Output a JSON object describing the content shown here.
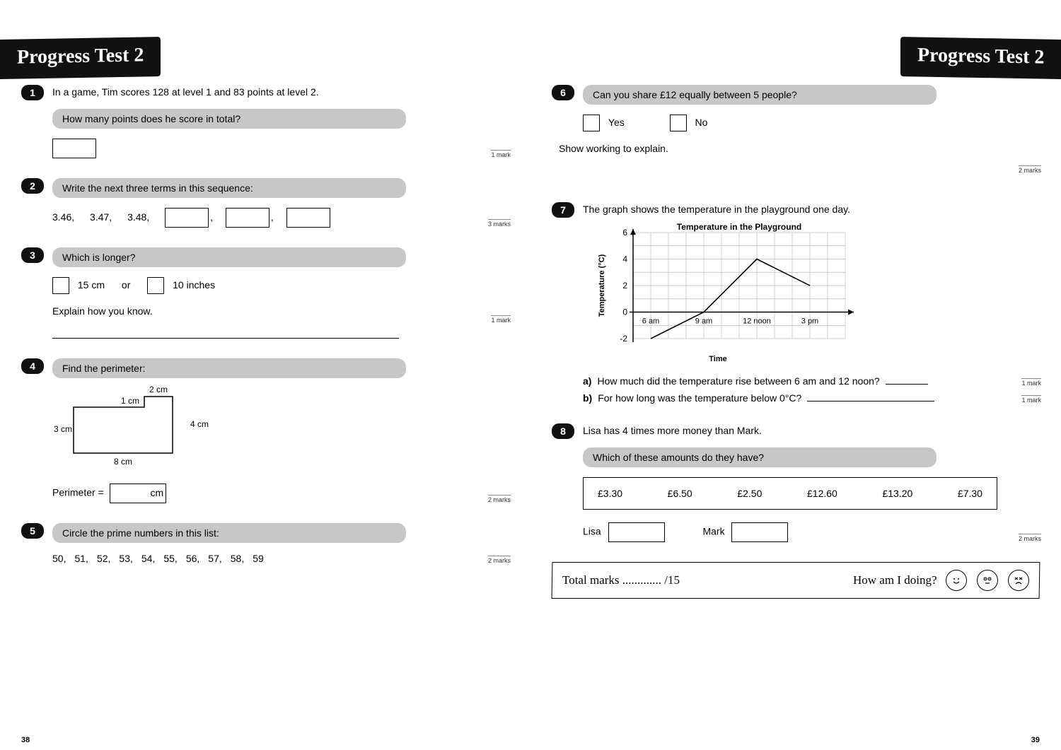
{
  "header": {
    "title": "Progress Test 2"
  },
  "pageLeft": 38,
  "pageRight": 39,
  "q1": {
    "num": "1",
    "intro": "In a game, Tim scores 128 at level 1 and 83 points at level 2.",
    "prompt": "How many points does he score in total?",
    "marks": "1 mark"
  },
  "q2": {
    "num": "2",
    "prompt": "Write the next three terms in this sequence:",
    "seq": [
      "3.46,",
      "3.47,",
      "3.48,"
    ],
    "marks": "3 marks"
  },
  "q3": {
    "num": "3",
    "prompt": "Which is longer?",
    "opt1": "15 cm",
    "or": "or",
    "opt2": "10 inches",
    "explain": "Explain how you know.",
    "marks": "1 mark"
  },
  "q4": {
    "num": "4",
    "prompt": "Find the perimeter:",
    "labels": {
      "top": "2 cm",
      "step": "1 cm",
      "right": "4 cm",
      "left": "3 cm",
      "bottom": "8 cm"
    },
    "eq": "Perimeter =",
    "unit": "cm",
    "marks": "2 marks"
  },
  "q5": {
    "num": "5",
    "prompt": "Circle the prime numbers in this list:",
    "list": [
      "50,",
      "51,",
      "52,",
      "53,",
      "54,",
      "55,",
      "56,",
      "57,",
      "58,",
      "59"
    ],
    "marks": "2 marks"
  },
  "q6": {
    "num": "6",
    "prompt": "Can you share £12 equally between 5 people?",
    "yes": "Yes",
    "no": "No",
    "working": "Show working to explain.",
    "marks": "2 marks"
  },
  "q7": {
    "num": "7",
    "intro": "The graph shows the temperature in the playground one day.",
    "chart": {
      "title": "Temperature in the Playground",
      "ylabel": "Temperature (°C)",
      "xlabel": "Time",
      "yticks": [
        -2,
        0,
        2,
        4,
        6
      ],
      "xticks": [
        "6 am",
        "9 am",
        "12 noon",
        "3 pm"
      ],
      "points": [
        [
          1,
          -2
        ],
        [
          4,
          0
        ],
        [
          7,
          4
        ],
        [
          10,
          2
        ]
      ],
      "grid_color": "#bbb",
      "line_color": "#000",
      "bg": "#fff"
    },
    "a": {
      "lbl": "a)",
      "text": "How much did the temperature rise between 6 am and 12 noon?",
      "marks": "1 mark"
    },
    "b": {
      "lbl": "b)",
      "text": "For how long was the temperature below 0°C?",
      "marks": "1 mark"
    }
  },
  "q8": {
    "num": "8",
    "intro": "Lisa has 4 times more money than Mark.",
    "prompt": "Which of these amounts do they have?",
    "amounts": [
      "£3.30",
      "£6.50",
      "£2.50",
      "£12.60",
      "£13.20",
      "£7.30"
    ],
    "lisa": "Lisa",
    "mark": "Mark",
    "marks": "2 marks"
  },
  "footer": {
    "total": "Total marks ............. /15",
    "how": "How am I doing?"
  }
}
